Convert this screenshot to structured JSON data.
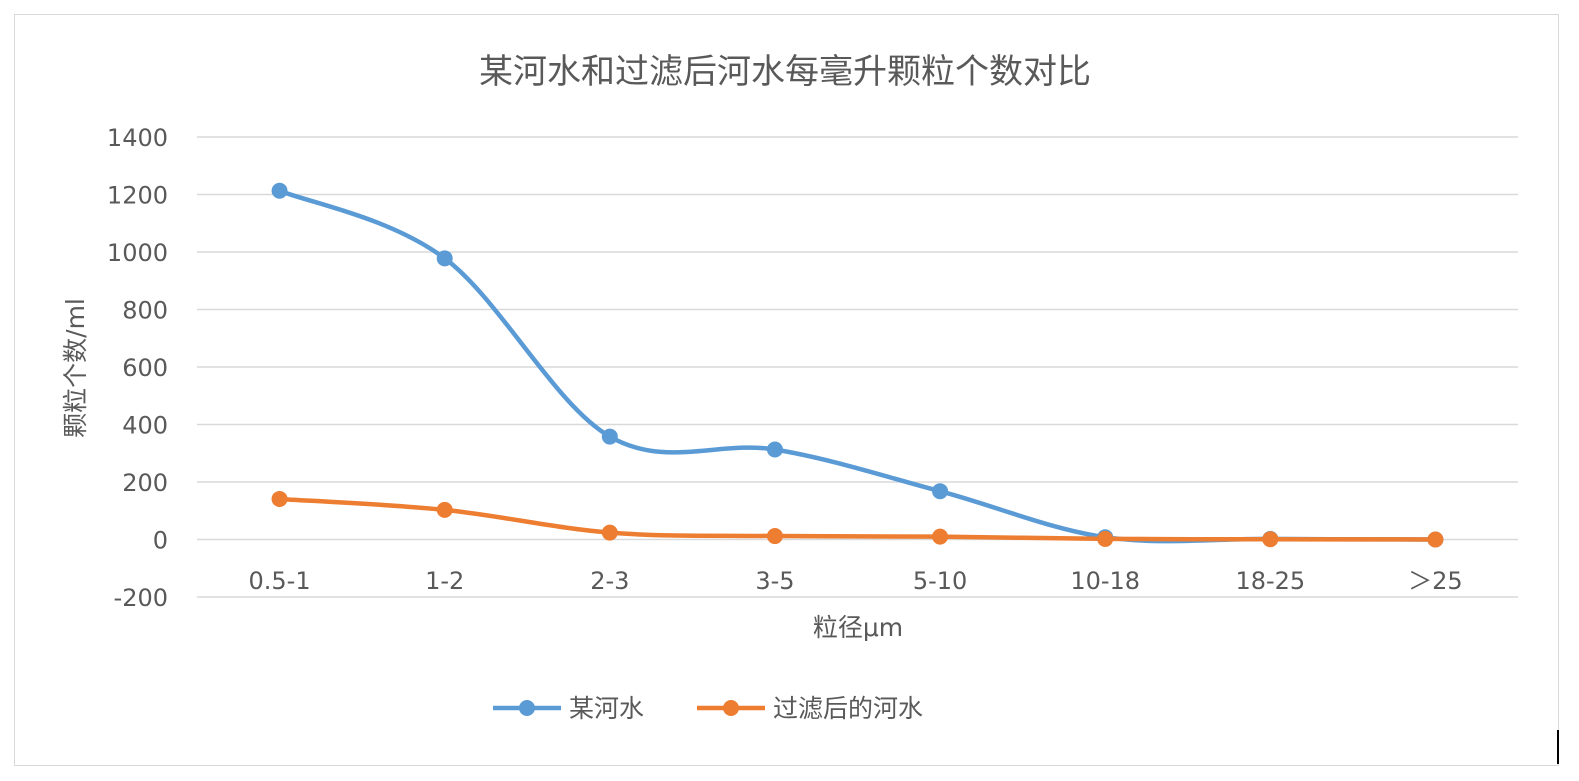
{
  "chart_data": {
    "type": "line",
    "title": "某河水和过滤后河水每毫升颗粒个数对比",
    "xlabel": "粒径μm",
    "ylabel": "颗粒个数/ml",
    "categories": [
      "0.5-1",
      "1-2",
      "2-3",
      "3-5",
      "5-10",
      "10-18",
      "18-25",
      "＞25"
    ],
    "ylim": [
      -200,
      1400
    ],
    "yticks": [
      -200,
      0,
      200,
      400,
      600,
      800,
      1000,
      1200,
      1400
    ],
    "ytick_labels": [
      "-200",
      "0",
      "200",
      "400",
      "600",
      "800",
      "1000",
      "1200",
      "1400"
    ],
    "grid": true,
    "smooth": true,
    "legend_position": "bottom",
    "series": [
      {
        "name": "某河水",
        "color": "#5b9bd5",
        "values": [
          1213,
          978,
          358,
          313,
          168,
          8,
          2,
          0
        ]
      },
      {
        "name": "过滤后的河水",
        "color": "#ed7d31",
        "values": [
          141,
          103,
          24,
          12,
          10,
          2,
          1,
          0
        ]
      }
    ]
  }
}
